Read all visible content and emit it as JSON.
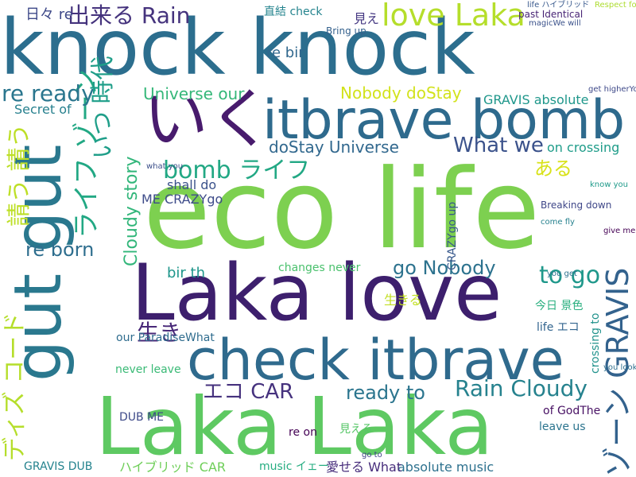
{
  "words": [
    {
      "text": "knock knock",
      "color": "#2c6e8e"
    },
    {
      "text": "eco life",
      "color": "#7dd050"
    },
    {
      "text": "Laka love",
      "color": "#3d1f6d"
    },
    {
      "text": "check itbrave",
      "color": "#2f6a8d"
    },
    {
      "text": "Laka Laka",
      "color": "#5ec962"
    },
    {
      "text": "itbrave bomb",
      "color": "#2e6a8d"
    },
    {
      "text": "gut gut",
      "color": "#2a788e"
    },
    {
      "text": "いく",
      "color": "#481b6d"
    },
    {
      "text": "love Laka",
      "color": "#b5de2b"
    },
    {
      "text": "出来る Rain",
      "color": "#45337d"
    },
    {
      "text": "bomb ライフ",
      "color": "#22a884"
    },
    {
      "text": "ディズ コード",
      "color": "#b5de2b"
    },
    {
      "text": "ライフ ゾーン",
      "color": "#22a884"
    },
    {
      "text": "ゾーン GRAVIS",
      "color": "#33628d"
    },
    {
      "text": "re ready",
      "color": "#2a768e"
    },
    {
      "text": "いつ 時代",
      "color": "#1f9e89"
    },
    {
      "text": "請う 請う",
      "color": "#bddf26"
    },
    {
      "text": "Universe our",
      "color": "#35b779"
    },
    {
      "text": "Nobody doStay",
      "color": "#d2e21b"
    },
    {
      "text": "doStay Universe",
      "color": "#31688e"
    },
    {
      "text": "What we",
      "color": "#3b528b"
    },
    {
      "text": "go Nobody",
      "color": "#2c728e"
    },
    {
      "text": "to go",
      "color": "#1f988b"
    },
    {
      "text": "Rain Cloudy",
      "color": "#26828e"
    },
    {
      "text": "ready to",
      "color": "#2b758e"
    },
    {
      "text": "エコ CAR",
      "color": "#46327e"
    },
    {
      "text": "Cloudy story",
      "color": "#32b67a"
    },
    {
      "text": "re born",
      "color": "#2e6e8e"
    },
    {
      "text": "ある",
      "color": "#d8e219"
    },
    {
      "text": "生き",
      "color": "#482878"
    },
    {
      "text": "GRAVIS absolute",
      "color": "#1f978b"
    },
    {
      "text": "on crossing",
      "color": "#1e9c89"
    },
    {
      "text": "Secret of",
      "color": "#27808e"
    },
    {
      "text": "日々 re",
      "color": "#3e4989"
    },
    {
      "text": "re bir",
      "color": "#31688e"
    },
    {
      "text": "直結 check",
      "color": "#25848e"
    },
    {
      "text": "見え",
      "color": "#453882"
    },
    {
      "text": "shall do",
      "color": "#3b528b"
    },
    {
      "text": "ME CRAZYgo",
      "color": "#3e4c8a"
    },
    {
      "text": "bir th",
      "color": "#1f968b"
    },
    {
      "text": "changes never",
      "color": "#4ac16d"
    },
    {
      "text": "生きる",
      "color": "#c2df23"
    },
    {
      "text": "absolute music",
      "color": "#2d718e"
    },
    {
      "text": "ハイブリッド CAR",
      "color": "#6ece58"
    },
    {
      "text": "愛せる What",
      "color": "#472d7b"
    },
    {
      "text": "DUB ME",
      "color": "#3e4a89"
    },
    {
      "text": "GRAVIS DUB",
      "color": "#25838e"
    },
    {
      "text": "never leave",
      "color": "#3aba76"
    },
    {
      "text": "our ParadiseWhat",
      "color": "#2f6c8e"
    },
    {
      "text": "leave us",
      "color": "#2b748e"
    },
    {
      "text": "of GodThe",
      "color": "#471063"
    },
    {
      "text": "crossing to",
      "color": "#20928c"
    },
    {
      "text": "life エコ",
      "color": "#32648e"
    },
    {
      "text": "music イェー",
      "color": "#26ad81"
    },
    {
      "text": "re on",
      "color": "#440154"
    },
    {
      "text": "見える",
      "color": "#56c667"
    },
    {
      "text": "CRAZYgo up",
      "color": "#38598c"
    },
    {
      "text": "今日 景色",
      "color": "#29af7f"
    },
    {
      "text": "Breaking down",
      "color": "#3f4788"
    },
    {
      "text": "Bring up",
      "color": "#34618d"
    },
    {
      "text": "past Identical",
      "color": "#482475"
    },
    {
      "text": "Respect for",
      "color": "#addc30"
    },
    {
      "text": "life ハイブリッド",
      "color": "#38588c"
    },
    {
      "text": "magicWe will",
      "color": "#3b528b"
    },
    {
      "text": "get higherYou",
      "color": "#3e4989"
    },
    {
      "text": "you get",
      "color": "#2c718e"
    },
    {
      "text": "you look",
      "color": "#2e6f8e"
    },
    {
      "text": "give me",
      "color": "#440154"
    },
    {
      "text": "know you",
      "color": "#1f9a8a"
    },
    {
      "text": "come fly",
      "color": "#26818e"
    },
    {
      "text": "what you",
      "color": "#3c4f8a"
    },
    {
      "text": "go to",
      "color": "#414487"
    }
  ]
}
